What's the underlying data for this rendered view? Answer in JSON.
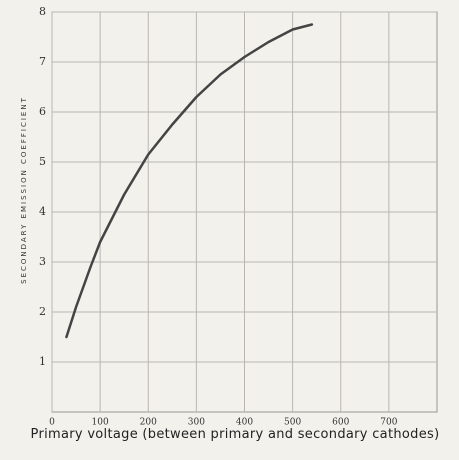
{
  "chart_data": {
    "type": "line",
    "x_label": "Primary voltage (between primary and secondary cathodes)",
    "y_label": "SECONDARY EMISSION COEFFICIENT",
    "x": [
      30,
      50,
      80,
      100,
      150,
      200,
      250,
      300,
      350,
      400,
      450,
      500,
      540
    ],
    "series": [
      {
        "name": "Secondary emission coefficient",
        "color": "#444444",
        "values": [
          1.5,
          2.1,
          2.9,
          3.4,
          4.35,
          5.15,
          5.75,
          6.3,
          6.75,
          7.1,
          7.4,
          7.65,
          7.75
        ]
      }
    ],
    "xlim": [
      0,
      800
    ],
    "xticks": [
      0,
      100,
      200,
      300,
      400,
      500,
      600,
      700
    ],
    "ylim": [
      0,
      8
    ],
    "yticks": [
      1,
      2,
      3,
      4,
      5,
      6,
      7,
      8
    ],
    "grid": true
  }
}
